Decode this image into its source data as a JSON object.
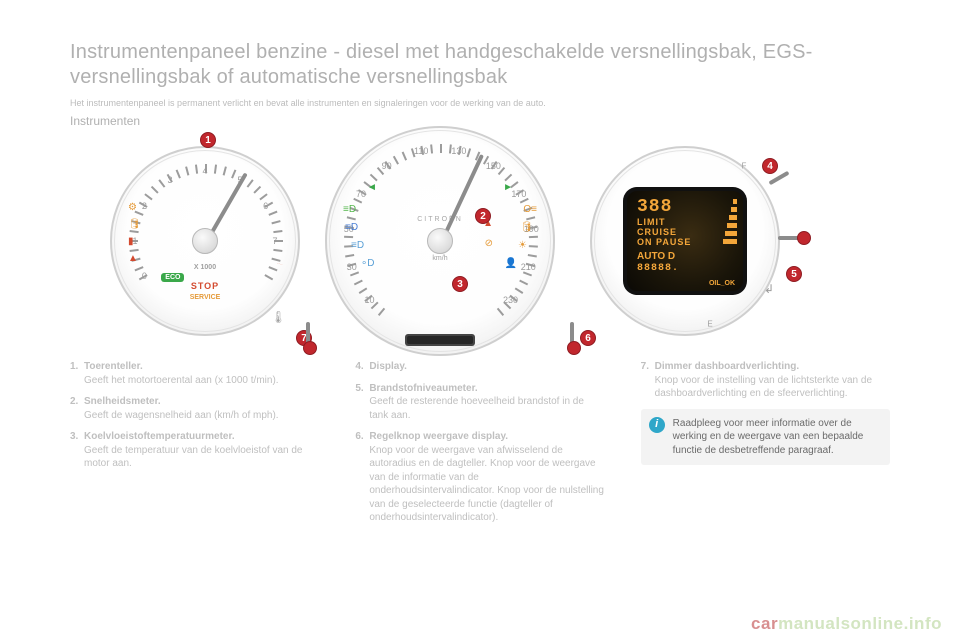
{
  "title": "Instrumentenpaneel benzine - diesel met handgeschakelde versnellingsbak, EGS-versnellingsbak of automatische versnellingsbak",
  "subtitle": "Het instrumentenpaneel is permanent verlicht en bevat alle instrumenten en signaleringen voor de werking van de auto.",
  "section": "Instrumenten",
  "tacho": {
    "label_x1000": "X 1000",
    "label_stop": "STOP",
    "label_service": "SERVICE",
    "eco": "ECO",
    "numbers": [
      "0",
      "1",
      "2",
      "3",
      "4",
      "5",
      "6",
      "7"
    ],
    "needle_angle_deg": 210
  },
  "speedo": {
    "brand": "CITROËN",
    "unit": "km/h",
    "numbers": [
      "10",
      "30",
      "50",
      "70",
      "90",
      "110",
      "130",
      "150",
      "170",
      "190",
      "210",
      "230"
    ],
    "needle_angle_deg": 205
  },
  "fuel_display": {
    "big": "388",
    "line1": "LIMIT",
    "line2": "CRUISE",
    "line3": "ON PAUSE",
    "auto": "AUTO D",
    "digits": "88888.",
    "oil_ok": "OIL_OK",
    "F": "F",
    "E": "E"
  },
  "callouts": {
    "c1": "1",
    "c2": "2",
    "c3": "3",
    "c4": "4",
    "c5": "5",
    "c6": "6",
    "c7": "7"
  },
  "columns": {
    "col1": [
      {
        "n": "1.",
        "term": "Toerenteller.",
        "desc": "Geeft het motortoerental aan (x 1000 t/min)."
      },
      {
        "n": "2.",
        "term": "Snelheidsmeter.",
        "desc": "Geeft de wagensnelheid aan (km/h of mph)."
      },
      {
        "n": "3.",
        "term": "Koelvloeistoftemperatuurmeter.",
        "desc": "Geeft de temperatuur van de koelvloeistof van de motor aan."
      }
    ],
    "col2": [
      {
        "n": "4.",
        "term": "Display.",
        "desc": ""
      },
      {
        "n": "5.",
        "term": "Brandstofniveaumeter.",
        "desc": "Geeft de resterende hoeveelheid brandstof in de tank aan."
      },
      {
        "n": "6.",
        "term": "Regelknop weergave display.",
        "desc": "Knop voor de weergave van afwisselend de autoradius en de dagteller. Knop voor de weergave van de informatie van de onderhoudsintervalindicator. Knop voor de nulstelling van de geselecteerde functie (dagteller of onderhoudsintervalindicator)."
      }
    ],
    "col3": [
      {
        "n": "7.",
        "term": "Dimmer dashboardverlichting.",
        "desc": "Knop voor de instelling van de lichtsterkte van de dashboardverlichting en de sfeerverlichting."
      }
    ],
    "infobox": "Raadpleeg voor meer informatie over de werking en de weergave van een bepaalde functie de desbetreffende paragraaf."
  },
  "watermark_a": "car",
  "watermark_b": "manualsonline",
  "watermark_c": ".info"
}
